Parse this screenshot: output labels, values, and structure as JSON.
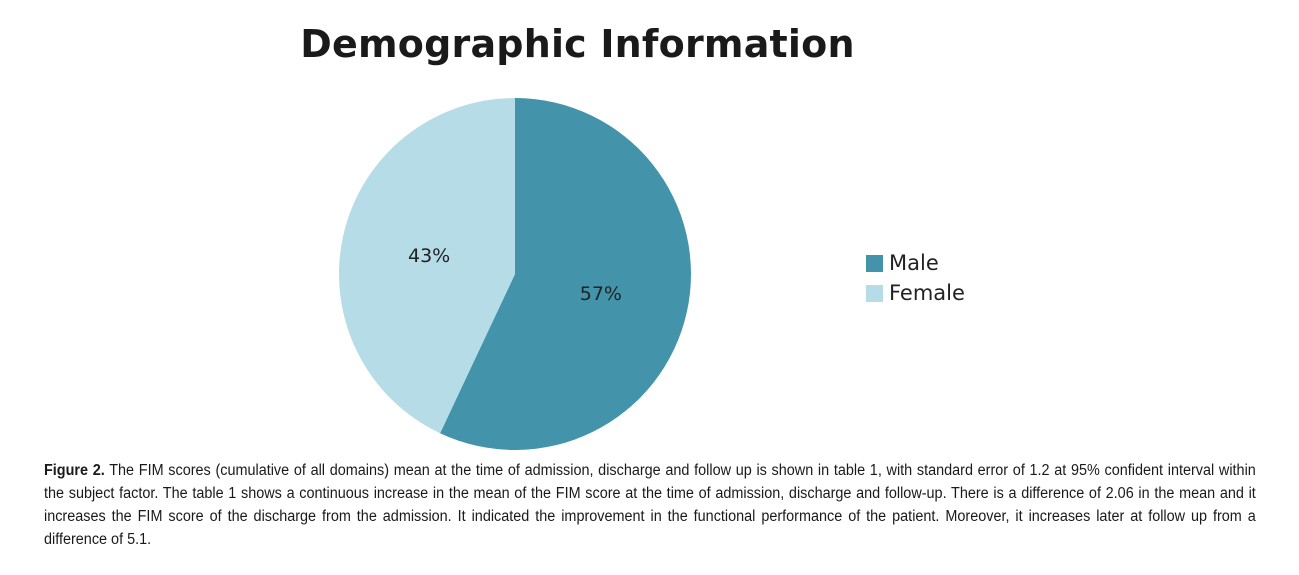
{
  "chart_data": {
    "type": "pie",
    "title": "Demographic Information",
    "categories": [
      "Male",
      "Female"
    ],
    "values": [
      57,
      43
    ],
    "labels": [
      "57%",
      "43%"
    ],
    "colors": [
      "#4394ab",
      "#b6dce7"
    ],
    "legend_position": "right"
  },
  "caption": {
    "label": "Figure 2.",
    "text": "The FIM scores (cumulative of all domains) mean at the time of admission, discharge and follow up is shown in table 1, with standard error of 1.2 at 95% confident interval within the subject factor. The table 1 shows a continuous increase in the mean of the FIM score at the time of admission, discharge and follow-up. There is a difference of 2.06 in the mean and it increases the FIM score of the discharge from the admission. It indicated the improvement in the functional performance of the patient. Moreover, it increases later at follow up from a difference of 5.1."
  }
}
